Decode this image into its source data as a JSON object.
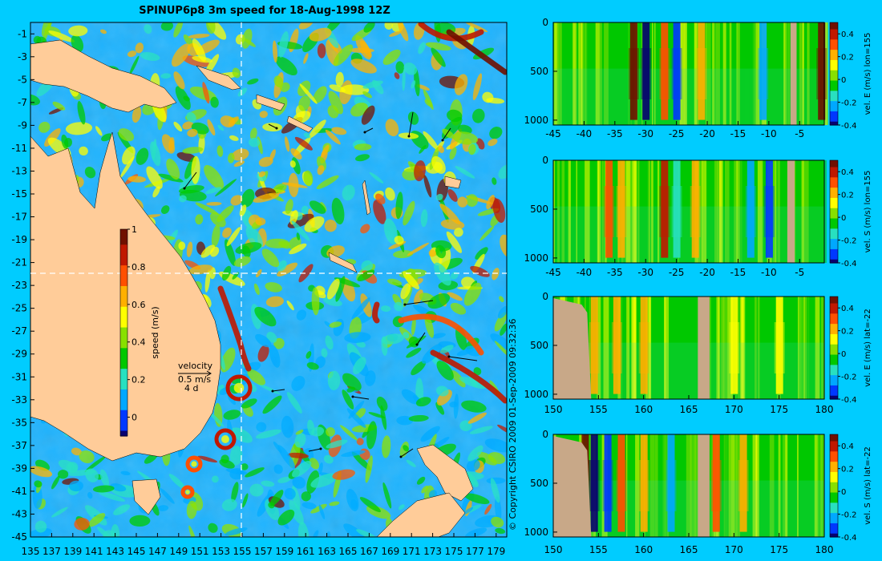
{
  "colors": {
    "background": "#00ccff",
    "land": "#ffcc99",
    "seabed": "#c8a888",
    "dashed_line": "#ffffff",
    "colormap": [
      "#080070",
      "#0038ff",
      "#00a8ff",
      "#28e0c0",
      "#00c800",
      "#88e000",
      "#ffff00",
      "#ffb000",
      "#ff5000",
      "#c01800",
      "#701000"
    ]
  },
  "map": {
    "title": "SPINUP6p8 3m speed for 18-Aug-1998 12Z",
    "copyright": "© Copyright CSIRO 2009   01-Sep-2009 09:32:36",
    "velocity_label": "velocity",
    "velocity_scale": "0.5 m/s",
    "velocity_days": "4 d",
    "colorbar_label": "speed (m/s)",
    "colorbar_ticks": [
      "1",
      "0.8",
      "0.6",
      "0.4",
      "0.2",
      "0"
    ],
    "x_ticks": [
      "135",
      "137",
      "139",
      "141",
      "143",
      "145",
      "147",
      "149",
      "151",
      "153",
      "155",
      "157",
      "159",
      "161",
      "163",
      "165",
      "167",
      "169",
      "171",
      "173",
      "175",
      "177",
      "179"
    ],
    "y_ticks": [
      "-1",
      "-3",
      "-5",
      "-7",
      "-9",
      "-11",
      "-13",
      "-15",
      "-17",
      "-19",
      "-21",
      "-23",
      "-25",
      "-27",
      "-29",
      "-31",
      "-33",
      "-35",
      "-37",
      "-39",
      "-41",
      "-43",
      "-45"
    ]
  },
  "chart_data": [
    {
      "type": "heatmap",
      "title": "SPINUP6p8 3m speed for 18-Aug-1998 12Z",
      "xlabel": "",
      "ylabel": "",
      "x_range": [
        135,
        180
      ],
      "y_range": [
        -45,
        0
      ],
      "colorbar_label": "speed (m/s)",
      "colorbar_range": [
        -0.1,
        1
      ],
      "markers": {
        "lon": 155,
        "lat": -22
      }
    },
    {
      "type": "heatmap",
      "colorbar_label": "vel. E (m/s) lon=155",
      "x_ticks": [
        "-45",
        "-40",
        "-35",
        "-30",
        "-25",
        "-20",
        "-15",
        "-10",
        "-5"
      ],
      "y_ticks": [
        "0",
        "500",
        "1000"
      ],
      "x_range": [
        -45,
        -1
      ],
      "y_range": [
        1050,
        0
      ],
      "colorbar_range": [
        -0.4,
        0.5
      ],
      "colorbar_ticks": [
        "0.4",
        "0.2",
        "0",
        "-0.2",
        "-0.4"
      ],
      "features": [
        {
          "x": -32,
          "v": 0.5
        },
        {
          "x": -30,
          "v": -0.4
        },
        {
          "x": -27,
          "v": 0.3
        },
        {
          "x": -25,
          "v": -0.35
        },
        {
          "x": -21,
          "v": 0.25
        },
        {
          "x": -11,
          "v": -0.2
        },
        {
          "x": -1.5,
          "v": 0.5
        }
      ],
      "seabed": [
        {
          "x0": -6.5,
          "x1": -5.5
        }
      ]
    },
    {
      "type": "heatmap",
      "colorbar_label": "vel. S (m/s) lon=155",
      "x_ticks": [
        "-45",
        "-40",
        "-35",
        "-30",
        "-25",
        "-20",
        "-15",
        "-10",
        "-5"
      ],
      "y_ticks": [
        "0",
        "500",
        "1000"
      ],
      "x_range": [
        -45,
        -1
      ],
      "y_range": [
        1050,
        0
      ],
      "colorbar_range": [
        -0.4,
        0.5
      ],
      "colorbar_ticks": [
        "0.4",
        "0.2",
        "0",
        "-0.2",
        "-0.4"
      ],
      "features": [
        {
          "x": -36,
          "v": 0.3
        },
        {
          "x": -34,
          "v": 0.25
        },
        {
          "x": -27,
          "v": 0.45
        },
        {
          "x": -25,
          "v": -0.15
        },
        {
          "x": -22,
          "v": 0.2
        },
        {
          "x": -13,
          "v": -0.2
        },
        {
          "x": -10,
          "v": -0.35
        }
      ],
      "seabed": [
        {
          "x0": -7,
          "x1": -5.8
        }
      ]
    },
    {
      "type": "heatmap",
      "colorbar_label": "vel. E (m/s) lat=-22",
      "x_ticks": [
        "150",
        "155",
        "160",
        "165",
        "170",
        "175",
        "180"
      ],
      "y_ticks": [
        "0",
        "500",
        "1000"
      ],
      "x_range": [
        150,
        180
      ],
      "y_range": [
        1050,
        0
      ],
      "colorbar_range": [
        -0.4,
        0.5
      ],
      "colorbar_ticks": [
        "0.4",
        "0.2",
        "0",
        "-0.2",
        "-0.4"
      ],
      "features": [
        {
          "x": 154.5,
          "v": 0.25
        },
        {
          "x": 157,
          "v": 0.2
        },
        {
          "x": 160,
          "v": 0.2
        },
        {
          "x": 170,
          "v": 0.15
        },
        {
          "x": 175,
          "v": 0.15
        }
      ],
      "seabed": [
        {
          "x0": 150,
          "x1": 154.2,
          "ramp": true
        },
        {
          "x0": 166,
          "x1": 167.3
        }
      ]
    },
    {
      "type": "heatmap",
      "colorbar_label": "vel. S (m/s) lat=-22",
      "x_ticks": [
        "150",
        "155",
        "160",
        "165",
        "170",
        "175",
        "180"
      ],
      "y_ticks": [
        "0",
        "500",
        "1000"
      ],
      "x_range": [
        150,
        180
      ],
      "y_range": [
        1050,
        0
      ],
      "colorbar_range": [
        -0.4,
        0.5
      ],
      "colorbar_ticks": [
        "0.4",
        "0.2",
        "0",
        "-0.2",
        "-0.4"
      ],
      "features": [
        {
          "x": 153.5,
          "v": 0.5
        },
        {
          "x": 154.5,
          "v": -0.4
        },
        {
          "x": 156,
          "v": -0.3
        },
        {
          "x": 157.5,
          "v": 0.3
        },
        {
          "x": 160,
          "v": 0.25
        },
        {
          "x": 163,
          "v": -0.2
        },
        {
          "x": 168,
          "v": 0.3
        },
        {
          "x": 171,
          "v": 0.2
        }
      ],
      "seabed": [
        {
          "x0": 150,
          "x1": 154.2,
          "ramp": true
        },
        {
          "x0": 166,
          "x1": 167.3
        }
      ]
    }
  ]
}
